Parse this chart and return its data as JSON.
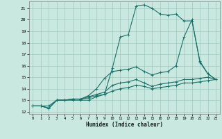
{
  "xlabel": "Humidex (Indice chaleur)",
  "background_color": "#c8e8e0",
  "line_color": "#1a7068",
  "grid_color": "#a0c8c0",
  "xlim": [
    -0.5,
    23.5
  ],
  "ylim": [
    11.8,
    21.6
  ],
  "xticks": [
    0,
    1,
    2,
    3,
    4,
    5,
    6,
    7,
    8,
    9,
    10,
    11,
    12,
    13,
    14,
    15,
    16,
    17,
    18,
    19,
    20,
    21,
    22,
    23
  ],
  "yticks": [
    12,
    13,
    14,
    15,
    16,
    17,
    18,
    19,
    20,
    21
  ],
  "lines": [
    {
      "x": [
        0,
        1,
        2,
        3,
        4,
        5,
        6,
        7,
        8,
        9,
        10,
        11,
        12,
        13,
        14,
        15,
        16,
        17,
        18,
        19,
        20,
        21,
        22,
        23
      ],
      "y": [
        12.5,
        12.5,
        12.5,
        13.0,
        13.0,
        13.0,
        13.0,
        13.0,
        13.3,
        13.5,
        15.8,
        18.5,
        18.7,
        21.2,
        21.3,
        21.0,
        20.5,
        20.4,
        20.5,
        19.9,
        19.9,
        16.4,
        15.3,
        14.8
      ]
    },
    {
      "x": [
        0,
        1,
        2,
        3,
        4,
        5,
        6,
        7,
        8,
        9,
        10,
        11,
        12,
        13,
        14,
        15,
        16,
        17,
        18,
        19,
        20,
        21,
        22,
        23
      ],
      "y": [
        12.5,
        12.5,
        12.3,
        13.0,
        13.0,
        13.1,
        13.1,
        13.4,
        14.0,
        14.9,
        15.5,
        15.6,
        15.7,
        15.9,
        15.5,
        15.2,
        15.4,
        15.5,
        16.0,
        18.5,
        20.0,
        16.3,
        15.3,
        14.8
      ]
    },
    {
      "x": [
        0,
        1,
        2,
        3,
        4,
        5,
        6,
        7,
        8,
        9,
        10,
        11,
        12,
        13,
        14,
        15,
        16,
        17,
        18,
        19,
        20,
        21,
        22,
        23
      ],
      "y": [
        12.5,
        12.5,
        12.3,
        13.0,
        13.0,
        13.1,
        13.1,
        13.3,
        13.5,
        13.7,
        14.3,
        14.5,
        14.6,
        14.8,
        14.5,
        14.2,
        14.4,
        14.5,
        14.6,
        14.8,
        14.8,
        14.9,
        15.0,
        14.8
      ]
    },
    {
      "x": [
        0,
        1,
        2,
        3,
        4,
        5,
        6,
        7,
        8,
        9,
        10,
        11,
        12,
        13,
        14,
        15,
        16,
        17,
        18,
        19,
        20,
        21,
        22,
        23
      ],
      "y": [
        12.5,
        12.5,
        12.3,
        13.0,
        13.0,
        13.1,
        13.1,
        13.2,
        13.4,
        13.5,
        13.8,
        14.0,
        14.1,
        14.3,
        14.2,
        14.0,
        14.1,
        14.2,
        14.3,
        14.5,
        14.5,
        14.6,
        14.7,
        14.8
      ]
    }
  ]
}
